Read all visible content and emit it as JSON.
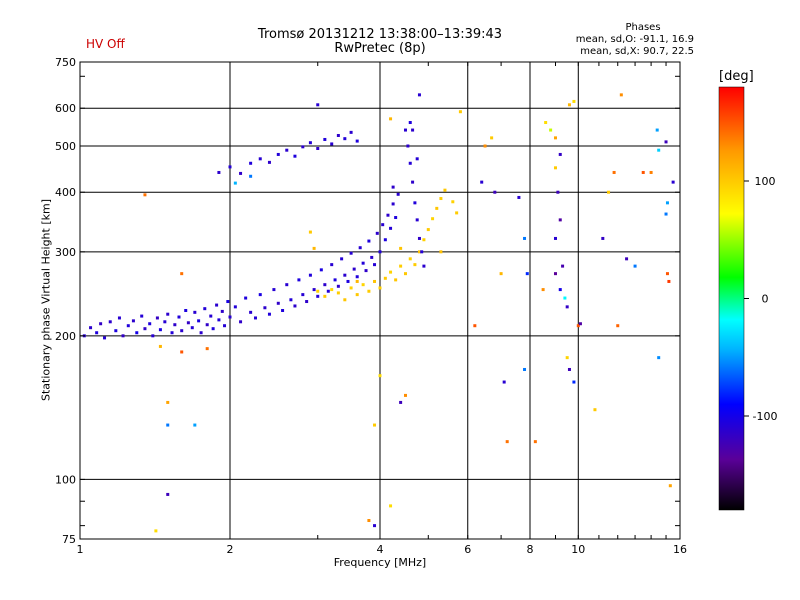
{
  "header": {
    "status": "HV Off",
    "title_line1": "Tromsø 20131212 13:38:00–13:39:43",
    "title_line2": "RwPretec (8p)",
    "phases_title": "Phases",
    "phases_o": "mean, sd,O: -91.1, 16.9",
    "phases_x": "mean, sd,X:  90.7, 22.5"
  },
  "colors": {
    "status_text": "#cc0000",
    "grid": "#000000"
  },
  "colorbar": {
    "unit": "[deg]",
    "range": [
      -180,
      180
    ],
    "ticks": [
      100,
      0,
      -100
    ]
  },
  "chart_data": {
    "type": "scatter",
    "title": "Tromsø 20131212 13:38:00–13:39:43",
    "subtitle": "RwPretec (8p)",
    "xlabel": "Frequency [MHz]",
    "ylabel": "Stationary phase Virtual Height [km]",
    "x_scale": "log",
    "y_scale": "log",
    "xlim": [
      1,
      16
    ],
    "ylim": [
      75,
      750
    ],
    "x_ticks": [
      1,
      2,
      4,
      6,
      8,
      10,
      16
    ],
    "y_ticks": [
      75,
      100,
      200,
      300,
      400,
      500,
      600,
      750
    ],
    "x_grid": [
      2,
      4,
      6,
      8,
      10
    ],
    "y_grid": [
      100,
      200,
      300,
      400,
      500,
      600
    ],
    "grid": true,
    "color_variable": "phase [deg]",
    "points": [
      {
        "x": 1.02,
        "y": 200,
        "c": -110
      },
      {
        "x": 1.05,
        "y": 208,
        "c": -112
      },
      {
        "x": 1.08,
        "y": 203,
        "c": -105
      },
      {
        "x": 1.1,
        "y": 212,
        "c": -115
      },
      {
        "x": 1.12,
        "y": 198,
        "c": -108
      },
      {
        "x": 1.15,
        "y": 214,
        "c": -112
      },
      {
        "x": 1.18,
        "y": 205,
        "c": -104
      },
      {
        "x": 1.2,
        "y": 218,
        "c": -110
      },
      {
        "x": 1.22,
        "y": 200,
        "c": -115
      },
      {
        "x": 1.25,
        "y": 210,
        "c": -106
      },
      {
        "x": 1.28,
        "y": 215,
        "c": -112
      },
      {
        "x": 1.3,
        "y": 203,
        "c": -100
      },
      {
        "x": 1.33,
        "y": 220,
        "c": -108
      },
      {
        "x": 1.35,
        "y": 207,
        "c": -114
      },
      {
        "x": 1.38,
        "y": 212,
        "c": -105
      },
      {
        "x": 1.4,
        "y": 200,
        "c": -110
      },
      {
        "x": 1.43,
        "y": 218,
        "c": -116
      },
      {
        "x": 1.45,
        "y": 206,
        "c": -102
      },
      {
        "x": 1.48,
        "y": 214,
        "c": -109
      },
      {
        "x": 1.5,
        "y": 222,
        "c": -112
      },
      {
        "x": 1.53,
        "y": 203,
        "c": -107
      },
      {
        "x": 1.55,
        "y": 211,
        "c": -113
      },
      {
        "x": 1.58,
        "y": 219,
        "c": -106
      },
      {
        "x": 1.6,
        "y": 205,
        "c": -111
      },
      {
        "x": 1.63,
        "y": 226,
        "c": -104
      },
      {
        "x": 1.65,
        "y": 213,
        "c": -115
      },
      {
        "x": 1.68,
        "y": 208,
        "c": -108
      },
      {
        "x": 1.7,
        "y": 224,
        "c": -110
      },
      {
        "x": 1.73,
        "y": 215,
        "c": -103
      },
      {
        "x": 1.75,
        "y": 203,
        "c": -112
      },
      {
        "x": 1.78,
        "y": 228,
        "c": -107
      },
      {
        "x": 1.8,
        "y": 211,
        "c": -114
      },
      {
        "x": 1.83,
        "y": 220,
        "c": -109
      },
      {
        "x": 1.85,
        "y": 207,
        "c": -105
      },
      {
        "x": 1.88,
        "y": 232,
        "c": -111
      },
      {
        "x": 1.9,
        "y": 216,
        "c": -106
      },
      {
        "x": 1.93,
        "y": 225,
        "c": -113
      },
      {
        "x": 1.95,
        "y": 210,
        "c": -108
      },
      {
        "x": 1.98,
        "y": 236,
        "c": -102
      },
      {
        "x": 2.0,
        "y": 219,
        "c": -110
      },
      {
        "x": 2.05,
        "y": 230,
        "c": -107
      },
      {
        "x": 2.1,
        "y": 214,
        "c": -114
      },
      {
        "x": 2.15,
        "y": 240,
        "c": -105
      },
      {
        "x": 2.2,
        "y": 224,
        "c": -111
      },
      {
        "x": 2.25,
        "y": 218,
        "c": -108
      },
      {
        "x": 2.3,
        "y": 244,
        "c": -103
      },
      {
        "x": 2.35,
        "y": 229,
        "c": -112
      },
      {
        "x": 2.4,
        "y": 222,
        "c": -106
      },
      {
        "x": 2.45,
        "y": 250,
        "c": -109
      },
      {
        "x": 2.5,
        "y": 234,
        "c": -114
      },
      {
        "x": 2.55,
        "y": 226,
        "c": -105
      },
      {
        "x": 2.6,
        "y": 256,
        "c": -110
      },
      {
        "x": 2.65,
        "y": 238,
        "c": -107
      },
      {
        "x": 2.7,
        "y": 231,
        "c": -112
      },
      {
        "x": 2.75,
        "y": 262,
        "c": -104
      },
      {
        "x": 2.8,
        "y": 244,
        "c": -109
      },
      {
        "x": 2.85,
        "y": 236,
        "c": -113
      },
      {
        "x": 2.9,
        "y": 268,
        "c": -106
      },
      {
        "x": 2.95,
        "y": 250,
        "c": -111
      },
      {
        "x": 3.0,
        "y": 242,
        "c": -108
      },
      {
        "x": 3.05,
        "y": 275,
        "c": -103
      },
      {
        "x": 3.1,
        "y": 256,
        "c": -112
      },
      {
        "x": 3.15,
        "y": 248,
        "c": -107
      },
      {
        "x": 3.2,
        "y": 282,
        "c": -110
      },
      {
        "x": 3.25,
        "y": 262,
        "c": -105
      },
      {
        "x": 3.3,
        "y": 254,
        "c": -113
      },
      {
        "x": 3.35,
        "y": 290,
        "c": -108
      },
      {
        "x": 3.4,
        "y": 268,
        "c": -111
      },
      {
        "x": 3.45,
        "y": 260,
        "c": -104
      },
      {
        "x": 3.5,
        "y": 298,
        "c": -109
      },
      {
        "x": 3.55,
        "y": 276,
        "c": -112
      },
      {
        "x": 3.6,
        "y": 266,
        "c": -106
      },
      {
        "x": 3.65,
        "y": 306,
        "c": -110
      },
      {
        "x": 3.7,
        "y": 284,
        "c": -107
      },
      {
        "x": 3.75,
        "y": 274,
        "c": -113
      },
      {
        "x": 3.8,
        "y": 316,
        "c": -105
      },
      {
        "x": 3.85,
        "y": 292,
        "c": -111
      },
      {
        "x": 3.9,
        "y": 282,
        "c": -108
      },
      {
        "x": 3.95,
        "y": 328,
        "c": -112
      },
      {
        "x": 4.0,
        "y": 300,
        "c": -106
      },
      {
        "x": 4.05,
        "y": 342,
        "c": -110
      },
      {
        "x": 4.1,
        "y": 318,
        "c": -104
      },
      {
        "x": 4.15,
        "y": 358,
        "c": -112
      },
      {
        "x": 4.2,
        "y": 336,
        "c": -108
      },
      {
        "x": 4.25,
        "y": 378,
        "c": -111
      },
      {
        "x": 4.3,
        "y": 354,
        "c": -105
      },
      {
        "x": 4.35,
        "y": 396,
        "c": -110
      },
      {
        "x": 4.25,
        "y": 410,
        "c": -113
      },
      {
        "x": 3.0,
        "y": 248,
        "c": 95
      },
      {
        "x": 3.1,
        "y": 242,
        "c": 100
      },
      {
        "x": 3.2,
        "y": 250,
        "c": 92
      },
      {
        "x": 3.3,
        "y": 246,
        "c": 98
      },
      {
        "x": 3.4,
        "y": 238,
        "c": 102
      },
      {
        "x": 3.5,
        "y": 252,
        "c": 96
      },
      {
        "x": 3.6,
        "y": 244,
        "c": 101
      },
      {
        "x": 3.7,
        "y": 256,
        "c": 94
      },
      {
        "x": 3.8,
        "y": 248,
        "c": 99
      },
      {
        "x": 3.9,
        "y": 260,
        "c": 103
      },
      {
        "x": 4.0,
        "y": 252,
        "c": 97
      },
      {
        "x": 4.1,
        "y": 264,
        "c": 100
      },
      {
        "x": 4.2,
        "y": 272,
        "c": 95
      },
      {
        "x": 4.3,
        "y": 262,
        "c": 102
      },
      {
        "x": 4.4,
        "y": 280,
        "c": 98
      },
      {
        "x": 4.5,
        "y": 270,
        "c": 101
      },
      {
        "x": 4.6,
        "y": 290,
        "c": 96
      },
      {
        "x": 4.7,
        "y": 282,
        "c": 99
      },
      {
        "x": 4.8,
        "y": 300,
        "c": 104
      },
      {
        "x": 4.9,
        "y": 318,
        "c": 97
      },
      {
        "x": 5.0,
        "y": 334,
        "c": 100
      },
      {
        "x": 5.1,
        "y": 352,
        "c": 95
      },
      {
        "x": 5.2,
        "y": 370,
        "c": 102
      },
      {
        "x": 5.3,
        "y": 388,
        "c": 98
      },
      {
        "x": 5.4,
        "y": 404,
        "c": 101
      },
      {
        "x": 5.6,
        "y": 382,
        "c": 96
      },
      {
        "x": 5.7,
        "y": 362,
        "c": 99
      },
      {
        "x": 4.4,
        "y": 305,
        "c": 103
      },
      {
        "x": 1.9,
        "y": 440,
        "c": -112
      },
      {
        "x": 2.0,
        "y": 452,
        "c": -108
      },
      {
        "x": 2.1,
        "y": 438,
        "c": -114
      },
      {
        "x": 2.2,
        "y": 460,
        "c": -106
      },
      {
        "x": 2.3,
        "y": 470,
        "c": -110
      },
      {
        "x": 2.4,
        "y": 462,
        "c": -113
      },
      {
        "x": 2.5,
        "y": 480,
        "c": -107
      },
      {
        "x": 2.6,
        "y": 490,
        "c": -111
      },
      {
        "x": 2.7,
        "y": 476,
        "c": -105
      },
      {
        "x": 2.8,
        "y": 498,
        "c": -112
      },
      {
        "x": 2.9,
        "y": 508,
        "c": -108
      },
      {
        "x": 3.0,
        "y": 494,
        "c": -114
      },
      {
        "x": 3.1,
        "y": 516,
        "c": -106
      },
      {
        "x": 3.2,
        "y": 505,
        "c": -110
      },
      {
        "x": 3.3,
        "y": 526,
        "c": -113
      },
      {
        "x": 3.4,
        "y": 518,
        "c": -107
      },
      {
        "x": 3.5,
        "y": 534,
        "c": -111
      },
      {
        "x": 3.6,
        "y": 512,
        "c": -105
      },
      {
        "x": 2.2,
        "y": 432,
        "c": -60
      },
      {
        "x": 2.05,
        "y": 418,
        "c": -45
      },
      {
        "x": 4.5,
        "y": 540,
        "c": -110
      },
      {
        "x": 4.55,
        "y": 500,
        "c": -112
      },
      {
        "x": 4.6,
        "y": 460,
        "c": -108
      },
      {
        "x": 4.65,
        "y": 420,
        "c": -113
      },
      {
        "x": 4.7,
        "y": 380,
        "c": -106
      },
      {
        "x": 4.75,
        "y": 350,
        "c": -110
      },
      {
        "x": 4.8,
        "y": 320,
        "c": -114
      },
      {
        "x": 4.85,
        "y": 300,
        "c": -107
      },
      {
        "x": 4.9,
        "y": 280,
        "c": -111
      },
      {
        "x": 4.6,
        "y": 560,
        "c": -105
      },
      {
        "x": 4.65,
        "y": 540,
        "c": -112
      },
      {
        "x": 4.75,
        "y": 470,
        "c": -108
      },
      {
        "x": 8.6,
        "y": 560,
        "c": 90
      },
      {
        "x": 8.8,
        "y": 540,
        "c": 60
      },
      {
        "x": 9.0,
        "y": 520,
        "c": 120
      },
      {
        "x": 9.2,
        "y": 480,
        "c": -115
      },
      {
        "x": 9.0,
        "y": 450,
        "c": 100
      },
      {
        "x": 9.1,
        "y": 400,
        "c": -120
      },
      {
        "x": 9.2,
        "y": 350,
        "c": -130
      },
      {
        "x": 9.0,
        "y": 320,
        "c": -110
      },
      {
        "x": 9.3,
        "y": 280,
        "c": -125
      },
      {
        "x": 9.2,
        "y": 250,
        "c": -100
      },
      {
        "x": 9.4,
        "y": 240,
        "c": -20
      },
      {
        "x": 9.5,
        "y": 230,
        "c": -115
      },
      {
        "x": 9.0,
        "y": 270,
        "c": -135
      },
      {
        "x": 9.6,
        "y": 610,
        "c": 110
      },
      {
        "x": 9.8,
        "y": 620,
        "c": 90
      },
      {
        "x": 9.5,
        "y": 180,
        "c": 95
      },
      {
        "x": 9.6,
        "y": 170,
        "c": -120
      },
      {
        "x": 9.8,
        "y": 160,
        "c": -80
      },
      {
        "x": 10.0,
        "y": 210,
        "c": 150
      },
      {
        "x": 10.1,
        "y": 212,
        "c": -130
      },
      {
        "x": 10.8,
        "y": 140,
        "c": 100
      },
      {
        "x": 11.2,
        "y": 320,
        "c": -115
      },
      {
        "x": 11.5,
        "y": 400,
        "c": 100
      },
      {
        "x": 11.8,
        "y": 440,
        "c": 140
      },
      {
        "x": 12.0,
        "y": 210,
        "c": 145
      },
      {
        "x": 12.2,
        "y": 640,
        "c": 130
      },
      {
        "x": 12.5,
        "y": 290,
        "c": -120
      },
      {
        "x": 13.0,
        "y": 280,
        "c": -60
      },
      {
        "x": 13.5,
        "y": 440,
        "c": 150
      },
      {
        "x": 14.0,
        "y": 440,
        "c": 135
      },
      {
        "x": 14.4,
        "y": 540,
        "c": -50
      },
      {
        "x": 14.5,
        "y": 490,
        "c": -35
      },
      {
        "x": 14.5,
        "y": 180,
        "c": -55
      },
      {
        "x": 15.0,
        "y": 510,
        "c": -120
      },
      {
        "x": 15.1,
        "y": 380,
        "c": -50
      },
      {
        "x": 15.0,
        "y": 360,
        "c": -60
      },
      {
        "x": 15.1,
        "y": 270,
        "c": 150
      },
      {
        "x": 15.2,
        "y": 260,
        "c": 160
      },
      {
        "x": 15.3,
        "y": 97,
        "c": 120
      },
      {
        "x": 15.5,
        "y": 420,
        "c": -110
      },
      {
        "x": 6.4,
        "y": 420,
        "c": -110
      },
      {
        "x": 6.5,
        "y": 500,
        "c": 130
      },
      {
        "x": 6.7,
        "y": 520,
        "c": 100
      },
      {
        "x": 6.8,
        "y": 400,
        "c": -120
      },
      {
        "x": 7.0,
        "y": 270,
        "c": 110
      },
      {
        "x": 7.1,
        "y": 160,
        "c": -110
      },
      {
        "x": 7.2,
        "y": 120,
        "c": 140
      },
      {
        "x": 7.6,
        "y": 390,
        "c": -110
      },
      {
        "x": 7.8,
        "y": 320,
        "c": -60
      },
      {
        "x": 7.9,
        "y": 270,
        "c": -80
      },
      {
        "x": 7.8,
        "y": 170,
        "c": -60
      },
      {
        "x": 8.2,
        "y": 120,
        "c": 140
      },
      {
        "x": 8.5,
        "y": 250,
        "c": 130
      },
      {
        "x": 6.2,
        "y": 210,
        "c": 150
      },
      {
        "x": 5.3,
        "y": 300,
        "c": 105
      },
      {
        "x": 4.2,
        "y": 570,
        "c": 110
      },
      {
        "x": 4.8,
        "y": 640,
        "c": -110
      },
      {
        "x": 5.8,
        "y": 590,
        "c": 100
      },
      {
        "x": 3.0,
        "y": 610,
        "c": -110
      },
      {
        "x": 2.9,
        "y": 330,
        "c": 100
      },
      {
        "x": 2.95,
        "y": 305,
        "c": 110
      },
      {
        "x": 1.6,
        "y": 270,
        "c": 140
      },
      {
        "x": 1.45,
        "y": 190,
        "c": 110
      },
      {
        "x": 1.6,
        "y": 185,
        "c": 150
      },
      {
        "x": 1.8,
        "y": 188,
        "c": 140
      },
      {
        "x": 1.5,
        "y": 145,
        "c": 120
      },
      {
        "x": 1.5,
        "y": 130,
        "c": -60
      },
      {
        "x": 1.7,
        "y": 130,
        "c": -50
      },
      {
        "x": 1.5,
        "y": 93,
        "c": -120
      },
      {
        "x": 1.42,
        "y": 78,
        "c": 90
      },
      {
        "x": 1.35,
        "y": 395,
        "c": 140
      },
      {
        "x": 3.6,
        "y": 260,
        "c": 110
      },
      {
        "x": 3.8,
        "y": 82,
        "c": 130
      },
      {
        "x": 3.9,
        "y": 80,
        "c": -110
      },
      {
        "x": 4.2,
        "y": 88,
        "c": 90
      },
      {
        "x": 3.9,
        "y": 130,
        "c": 100
      },
      {
        "x": 4.4,
        "y": 145,
        "c": -120
      },
      {
        "x": 4.5,
        "y": 150,
        "c": 130
      },
      {
        "x": 4.0,
        "y": 165,
        "c": 90
      }
    ]
  }
}
